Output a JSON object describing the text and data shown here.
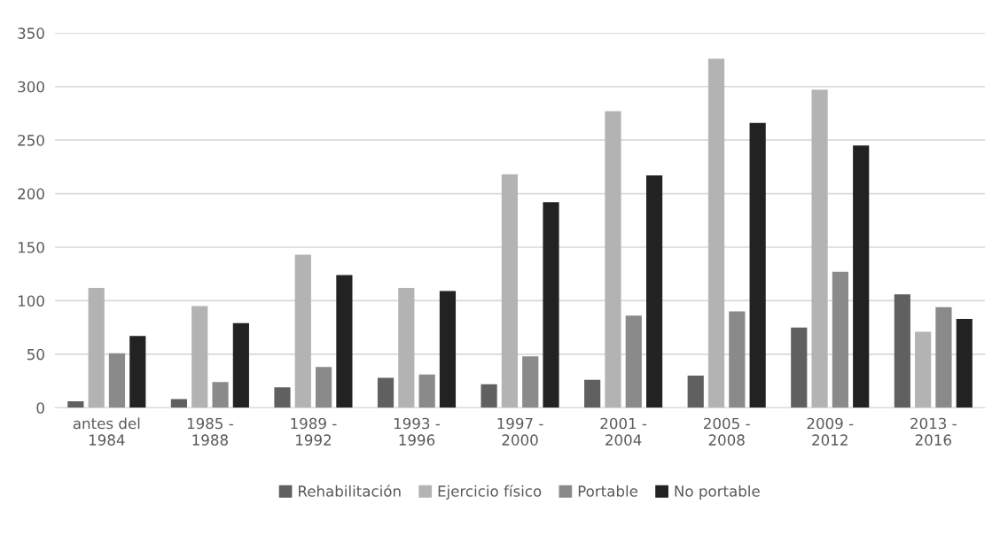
{
  "chart_data": {
    "type": "bar",
    "categories": [
      "antes del\n1984",
      "1985 -\n1988",
      "1989 -\n1992",
      "1993 -\n1996",
      "1997 -\n2000",
      "2001 -\n2004",
      "2005 -\n2008",
      "2009 -\n2012",
      "2013 -\n2016"
    ],
    "series": [
      {
        "name": "Rehabilitación",
        "color": "#606060",
        "values": [
          6,
          8,
          19,
          28,
          22,
          26,
          30,
          75,
          106
        ]
      },
      {
        "name": "Ejercicio físico",
        "color": "#b3b3b3",
        "values": [
          112,
          95,
          143,
          112,
          218,
          277,
          326,
          297,
          71
        ]
      },
      {
        "name": "Portable",
        "color": "#8a8a8a",
        "values": [
          51,
          24,
          38,
          31,
          48,
          86,
          90,
          127,
          94
        ]
      },
      {
        "name": "No portable",
        "color": "#222222",
        "values": [
          67,
          79,
          124,
          109,
          192,
          217,
          266,
          245,
          83
        ]
      }
    ],
    "ylim": [
      0,
      350
    ],
    "yticks": [
      0,
      50,
      100,
      150,
      200,
      250,
      300,
      350
    ],
    "grid": "y",
    "legend": "bottom"
  }
}
